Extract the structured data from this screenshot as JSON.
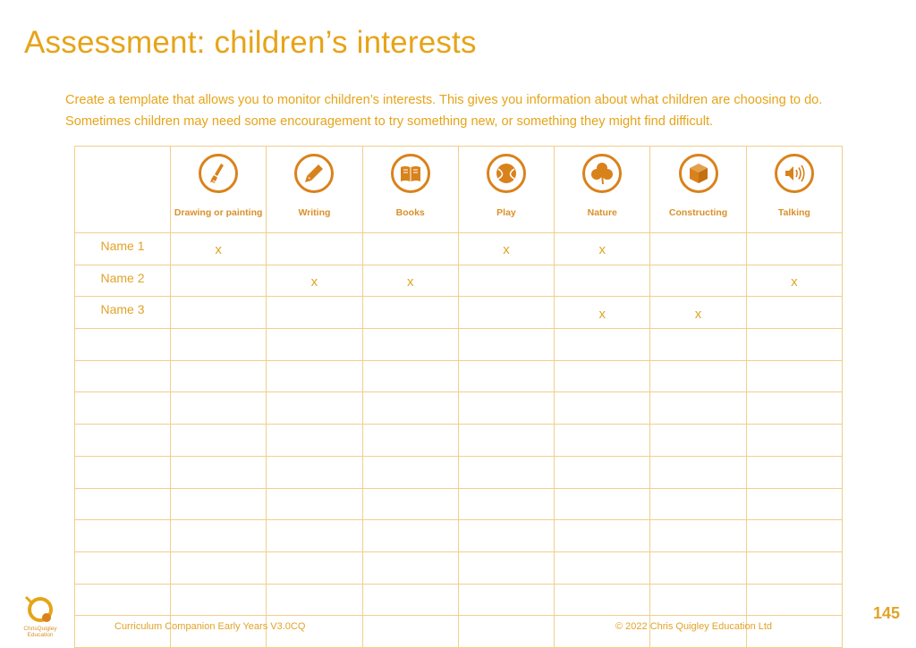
{
  "title": "Assessment: children’s interests",
  "intro": "Create a template that allows you to monitor children’s interests. This gives you information about what children are choosing to do. Sometimes children may need some encouragement to try something new, or something they might find difficult.",
  "columns": [
    {
      "label": "Drawing or painting",
      "icon": "paintbrush-icon"
    },
    {
      "label": "Writing",
      "icon": "pencil-icon"
    },
    {
      "label": "Books",
      "icon": "book-icon"
    },
    {
      "label": "Play",
      "icon": "ball-icon"
    },
    {
      "label": "Nature",
      "icon": "clover-icon"
    },
    {
      "label": "Constructing",
      "icon": "cube-icon"
    },
    {
      "label": "Talking",
      "icon": "speaker-icon"
    }
  ],
  "rows": [
    {
      "name": "Name 1",
      "marks": [
        "x",
        "",
        "",
        "x",
        "x",
        "",
        ""
      ]
    },
    {
      "name": "Name 2",
      "marks": [
        "",
        "x",
        "x",
        "",
        "",
        "",
        "x"
      ]
    },
    {
      "name": "Name 3",
      "marks": [
        "",
        "",
        "",
        "",
        "x",
        "x",
        ""
      ]
    },
    {
      "name": "",
      "marks": [
        "",
        "",
        "",
        "",
        "",
        "",
        ""
      ]
    },
    {
      "name": "",
      "marks": [
        "",
        "",
        "",
        "",
        "",
        "",
        ""
      ]
    },
    {
      "name": "",
      "marks": [
        "",
        "",
        "",
        "",
        "",
        "",
        ""
      ]
    },
    {
      "name": "",
      "marks": [
        "",
        "",
        "",
        "",
        "",
        "",
        ""
      ]
    },
    {
      "name": "",
      "marks": [
        "",
        "",
        "",
        "",
        "",
        "",
        ""
      ]
    },
    {
      "name": "",
      "marks": [
        "",
        "",
        "",
        "",
        "",
        "",
        ""
      ]
    },
    {
      "name": "",
      "marks": [
        "",
        "",
        "",
        "",
        "",
        "",
        ""
      ]
    },
    {
      "name": "",
      "marks": [
        "",
        "",
        "",
        "",
        "",
        "",
        ""
      ]
    },
    {
      "name": "",
      "marks": [
        "",
        "",
        "",
        "",
        "",
        "",
        ""
      ]
    },
    {
      "name": "",
      "marks": [
        "",
        "",
        "",
        "",
        "",
        "",
        ""
      ]
    }
  ],
  "footer": {
    "logo_text": "ChrisQuigley Education",
    "left": "Curriculum Companion Early Years V3.0CQ",
    "right": "© 2022 Chris Quigley Education Ltd",
    "page_number": "145"
  },
  "colors": {
    "accent": "#e6a419",
    "icon": "#d9821c",
    "grid": "#f0cf8b"
  }
}
